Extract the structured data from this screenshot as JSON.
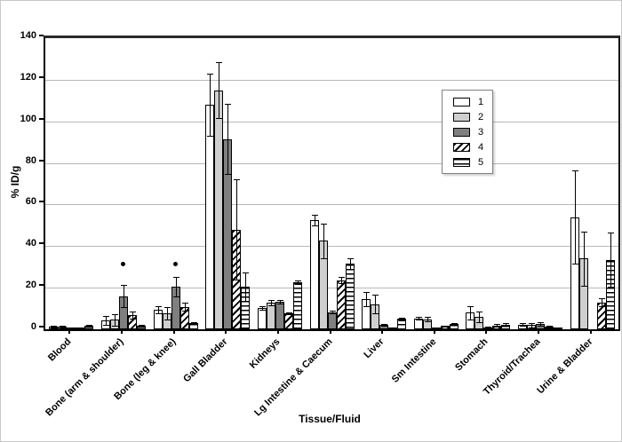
{
  "chart_data": {
    "type": "bar",
    "title": "",
    "xlabel": "Tissue/Fluid",
    "ylabel": "% ID/g",
    "ylim": [
      0,
      140
    ],
    "yticks": [
      0,
      20,
      40,
      60,
      80,
      100,
      120,
      140
    ],
    "grid": "horizontal",
    "gridcolor": "#b8b8b8",
    "legend_position": "upper-right-inside",
    "error_bars": true,
    "categories": [
      "Blood",
      "Bone (arm & shoulder)",
      "Bone (leg & knee)",
      "Gall Bladder",
      "Kidneys",
      "Lg Intestine & Caecum",
      "Liver",
      "Sm Intestine",
      "Stomach",
      "Thyroid/Trachea",
      "Urine & Bladder"
    ],
    "series": [
      {
        "name": "1",
        "pattern": "solid",
        "fill": "#ffffff",
        "values": [
          1.3,
          4.3,
          9.4,
          108,
          10.3,
          52.5,
          14.5,
          5.3,
          8.0,
          2.2,
          54
        ],
        "errors": [
          0.4,
          2.0,
          1.8,
          15,
          1.0,
          2.5,
          3.5,
          0.8,
          3.3,
          0.6,
          22.5
        ]
      },
      {
        "name": "2",
        "pattern": "solid",
        "fill": "#cfcfcf",
        "values": [
          1.3,
          4.5,
          7.7,
          115,
          12.7,
          42.5,
          12.0,
          4.9,
          6.0,
          2.0,
          34
        ],
        "errors": [
          0.4,
          2.8,
          3.0,
          13.5,
          1.2,
          8.5,
          4.5,
          0.9,
          2.6,
          1.0,
          13
        ]
      },
      {
        "name": "3",
        "pattern": "solid",
        "fill": "#7f7f7f",
        "values": [
          0.3,
          16.0,
          20.4,
          91.5,
          13.2,
          8.3,
          2.0,
          0.5,
          0.9,
          2.7,
          0
        ],
        "errors": [
          0.1,
          5.3,
          4.6,
          17,
          1.0,
          0.5,
          0.4,
          0.2,
          0.3,
          0.9,
          0
        ]
      },
      {
        "name": "4",
        "pattern": "diagonal-hatch",
        "fill": "#ffffff",
        "values": [
          0.4,
          6.8,
          10.8,
          48,
          7.7,
          23.5,
          0.8,
          1.6,
          1.9,
          1.2,
          13
        ],
        "errors": [
          0.1,
          1.8,
          1.8,
          24,
          0.5,
          1.5,
          0.2,
          0.3,
          0.5,
          0.3,
          2
        ]
      },
      {
        "name": "5",
        "pattern": "horizontal-lines",
        "fill": "#ffffff",
        "values": [
          1.8,
          1.8,
          3.0,
          20.5,
          22.6,
          31.5,
          5.0,
          2.6,
          2.3,
          0.8,
          33.5
        ],
        "errors": [
          0.3,
          0.4,
          0.5,
          7,
          1.0,
          2.5,
          0.6,
          0.4,
          0.5,
          0.2,
          13
        ]
      }
    ],
    "annotations": [
      {
        "type": "significance-dot",
        "category": "Bone (arm & shoulder)",
        "value": 31.5
      },
      {
        "type": "significance-dot",
        "category": "Bone (leg & knee)",
        "value": 31.5
      }
    ]
  }
}
